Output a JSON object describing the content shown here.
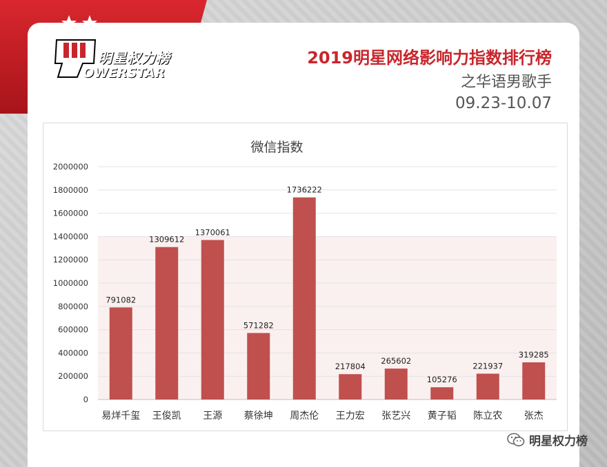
{
  "brand": {
    "logo_cn": "明星权力榜",
    "logo_en": "OWERSTAR"
  },
  "header": {
    "title": "2019明星网络影响力指数排行榜",
    "subtitle": "之华语男歌手",
    "date_range": "09.23-10.07"
  },
  "footer": {
    "account": "明星权力榜",
    "icon": "wechat-icon"
  },
  "colors": {
    "bar": "#c0504d",
    "accent": "#c8262c",
    "plot_band": "#f7e3e3"
  },
  "chart_data": {
    "type": "bar",
    "title": "微信指数",
    "categories": [
      "易烊千玺",
      "王俊凯",
      "王源",
      "蔡徐坤",
      "周杰伦",
      "王力宏",
      "张艺兴",
      "黄子韬",
      "陈立农",
      "张杰"
    ],
    "values": [
      791082,
      1309612,
      1370061,
      571282,
      1736222,
      217804,
      265602,
      105276,
      221937,
      319285
    ],
    "data_labels": [
      "791082",
      "1309612",
      "1370061",
      "571282",
      "1736222",
      "217804",
      "265602",
      "105276",
      "221937",
      "319285"
    ],
    "ylim": [
      0,
      2000000
    ],
    "yticks": [
      "0",
      "200000",
      "400000",
      "600000",
      "800000",
      "1000000",
      "1200000",
      "1400000",
      "1600000",
      "1800000",
      "2000000"
    ],
    "grid": true,
    "legend": "none"
  }
}
